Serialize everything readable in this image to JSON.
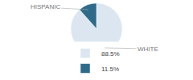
{
  "chart_data": {
    "type": "pie",
    "categories": [
      "88.5%",
      "11.5%"
    ],
    "values": [
      88.5,
      11.5
    ],
    "colors": [
      "#dce6f1",
      "#2e6b8a"
    ],
    "annotations": [
      "WHITE",
      "HISPANIC"
    ],
    "legend": "bottom"
  }
}
